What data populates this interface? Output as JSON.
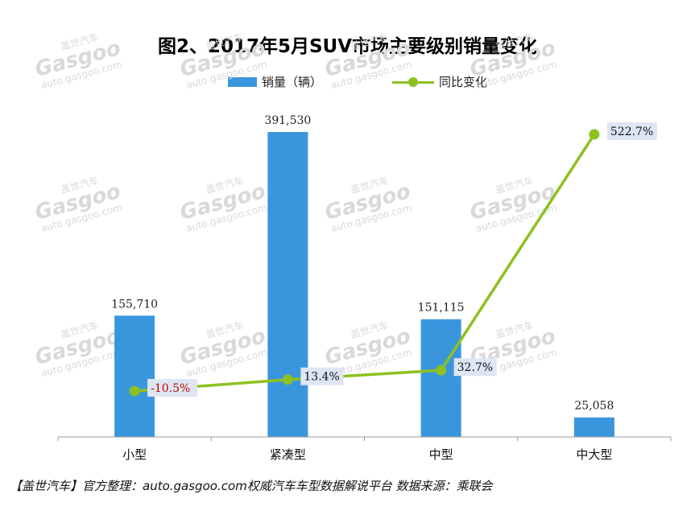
{
  "title": "图2、2017年5月SUV市场主要级别销量变化",
  "footer": "【盖世汽车】官方整理：auto.gasgoo.com权威汽车车型数据解说平台 数据来源：乘联会",
  "watermark": {
    "brand_cn": "盖世汽车",
    "brand_logo": "Gasgoo",
    "url": "auto.gasgoo.com"
  },
  "colors": {
    "bar": "#3a96dc",
    "line": "#8dc11f",
    "negative_label": "#c00000",
    "label_box": "#dde6f2"
  },
  "chart_data": {
    "type": "bar",
    "title": "图2、2017年5月SUV市场主要级别销量变化",
    "categories": [
      "小型",
      "紧凑型",
      "中型",
      "中大型"
    ],
    "series": [
      {
        "name": "销量（辆）",
        "type": "bar",
        "values": [
          155710,
          391530,
          151115,
          25058
        ],
        "labels": [
          "155,710",
          "391,530",
          "151,115",
          "25,058"
        ]
      },
      {
        "name": "同比变化",
        "type": "line",
        "values": [
          -10.5,
          13.4,
          32.7,
          522.7
        ],
        "labels": [
          "-10.5%",
          "13.4%",
          "32.7%",
          "522.7%"
        ]
      }
    ],
    "legend_position": "top-center",
    "grid": false
  }
}
